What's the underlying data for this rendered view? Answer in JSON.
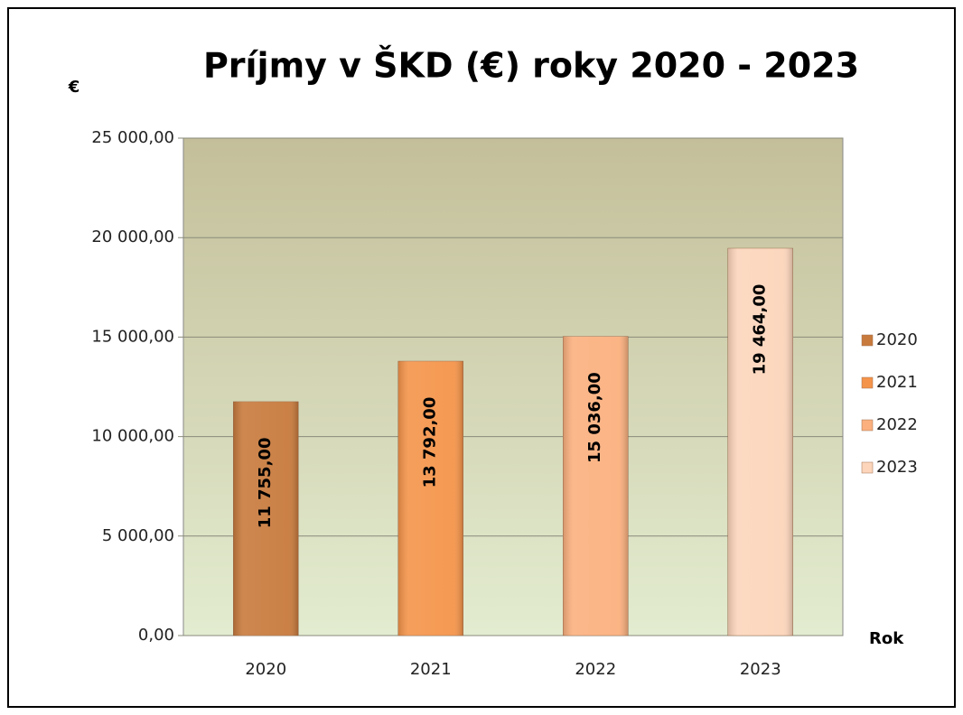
{
  "chart_data": {
    "type": "bar",
    "title": "Príjmy v ŠKD (€) roky 2020 - 2023",
    "y_label": "€",
    "x_label": "Rok",
    "categories": [
      "2020",
      "2021",
      "2022",
      "2023"
    ],
    "values": [
      11755,
      13792,
      15036,
      19464
    ],
    "value_labels": [
      "11 755,00",
      "13 792,00",
      "15 036,00",
      "19 464,00"
    ],
    "colors": [
      "#c87a3c",
      "#f4944a",
      "#fbb07e",
      "#fcd5bb"
    ],
    "ylim": [
      0,
      25000
    ],
    "yticks": [
      {
        "value": 0,
        "label": "0,00"
      },
      {
        "value": 5000,
        "label": "5 000,00"
      },
      {
        "value": 10000,
        "label": "10 000,00"
      },
      {
        "value": 15000,
        "label": "15 000,00"
      },
      {
        "value": 20000,
        "label": "20 000,00"
      },
      {
        "value": 25000,
        "label": "25 000,00"
      }
    ],
    "grid": true,
    "legend": "right"
  }
}
